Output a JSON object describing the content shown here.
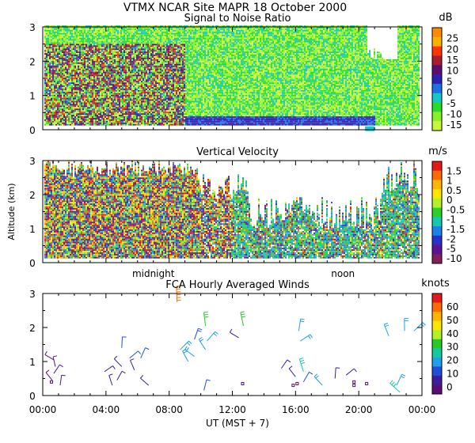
{
  "header": {
    "title": "VTMX   NCAR Site   MAPR 18 October 2000"
  },
  "chart_data": [
    {
      "type": "heatmap",
      "title": "Signal to Noise Ratio",
      "ylabel": "",
      "ylim": [
        0,
        3
      ],
      "yticks": [
        "0",
        "1",
        "2",
        "3"
      ],
      "colorbar": {
        "unit": "dB",
        "labels": [
          "25",
          "20",
          "15",
          "10",
          "5",
          "0",
          "-5",
          "-10",
          "-15"
        ],
        "colors": [
          "#ff8c00",
          "#ffb000",
          "#ff3300",
          "#aa1a33",
          "#5a0f70",
          "#3020b0",
          "#1e6fe6",
          "#14c8c8",
          "#28dc28",
          "#8cf028",
          "#c8f53c"
        ]
      },
      "notes": "Strong echo (15-25 dB) below 2 km from 00:00 to ~08:00 UT; weaker -15 to -5 dB elsewhere; lowest gate data missing."
    },
    {
      "type": "heatmap",
      "title": "Vertical Velocity",
      "ylabel": "Altitude (km)",
      "ylim": [
        0,
        3
      ],
      "yticks": [
        "0",
        "1",
        "2",
        "3"
      ],
      "xaxis_labels": [
        "midnight",
        "noon"
      ],
      "colorbar": {
        "unit": "m/s",
        "labels": [
          "1.5",
          "1",
          "0.5",
          "0",
          "-0.5",
          "-1",
          "-1.5",
          "-2",
          "-5",
          "-10"
        ],
        "colors": [
          "#e61919",
          "#ff6a00",
          "#ffb400",
          "#ffe600",
          "#b4f028",
          "#28d228",
          "#14c8b4",
          "#1e82e6",
          "#2832c8",
          "#5a1496",
          "#821e5a"
        ]
      },
      "notes": "Mixed up/down motions up to 3 km before ~10:00 UT, thinning to below ~1.5 km in afternoon."
    },
    {
      "type": "scatter",
      "title": "FCA Hourly Averaged Winds",
      "ylabel": "",
      "ylim": [
        0,
        3
      ],
      "xlim": [
        0,
        24
      ],
      "xlabel": "UT  (MST + 7)",
      "yticks": [
        "0",
        "1",
        "2",
        "3"
      ],
      "xticks": [
        "00:00",
        "04:00",
        "08:00",
        "12:00",
        "16:00",
        "20:00",
        "00:00"
      ],
      "colorbar": {
        "unit": "knots",
        "labels": [
          "60",
          "50",
          "40",
          "30",
          "20",
          "10",
          "0"
        ],
        "colors": [
          "#e61919",
          "#ff6a00",
          "#ffb400",
          "#ffe600",
          "#b4f028",
          "#28c828",
          "#14c8a0",
          "#1ea0e6",
          "#1e50dc",
          "#3c1e9b",
          "#5a0f78"
        ]
      },
      "series": [
        {
          "name": "wind barbs",
          "points": [
            {
              "x": 0.7,
              "y": 1.05,
              "speed": 5
            },
            {
              "x": 0.8,
              "y": 0.85,
              "speed": 5
            },
            {
              "x": 0.7,
              "y": 0.65,
              "speed": 8
            },
            {
              "x": 0.6,
              "y": 0.45,
              "speed": 3
            },
            {
              "x": 1.1,
              "y": 0.3,
              "speed": 6
            },
            {
              "x": 3.9,
              "y": 0.7,
              "speed": 6
            },
            {
              "x": 4.4,
              "y": 0.3,
              "speed": 8
            },
            {
              "x": 4.7,
              "y": 0.45,
              "speed": 6
            },
            {
              "x": 5.0,
              "y": 0.85,
              "speed": 10
            },
            {
              "x": 5.0,
              "y": 1.4,
              "speed": 12
            },
            {
              "x": 5.5,
              "y": 1.1,
              "speed": 12
            },
            {
              "x": 5.8,
              "y": 0.75,
              "speed": 8
            },
            {
              "x": 6.2,
              "y": 1.1,
              "speed": 14
            },
            {
              "x": 6.7,
              "y": 0.3,
              "speed": 10
            },
            {
              "x": 8.5,
              "y": 2.75,
              "speed": 55
            },
            {
              "x": 8.7,
              "y": 1.35,
              "speed": 20
            },
            {
              "x": 9.2,
              "y": 1.0,
              "speed": 18
            },
            {
              "x": 9.6,
              "y": 1.65,
              "speed": 16
            },
            {
              "x": 9.6,
              "y": 1.15,
              "speed": 18
            },
            {
              "x": 10.3,
              "y": 2.05,
              "speed": 30
            },
            {
              "x": 10.4,
              "y": 1.6,
              "speed": 22
            },
            {
              "x": 10.3,
              "y": 1.35,
              "speed": 20
            },
            {
              "x": 10.2,
              "y": 0.15,
              "speed": 12
            },
            {
              "x": 12.4,
              "y": 1.7,
              "speed": 6
            },
            {
              "x": 12.7,
              "y": 2.05,
              "speed": 32
            },
            {
              "x": 15.1,
              "y": 0.8,
              "speed": 6
            },
            {
              "x": 16.0,
              "y": 0.55,
              "speed": 8
            },
            {
              "x": 16.2,
              "y": 1.9,
              "speed": 20
            },
            {
              "x": 16.3,
              "y": 1.6,
              "speed": 18
            },
            {
              "x": 16.5,
              "y": 0.7,
              "speed": 28
            },
            {
              "x": 16.5,
              "y": 0.4,
              "speed": 14
            },
            {
              "x": 17.7,
              "y": 0.3,
              "speed": 18
            },
            {
              "x": 18.5,
              "y": 0.5,
              "speed": 10
            },
            {
              "x": 19.2,
              "y": 0.6,
              "speed": 6
            },
            {
              "x": 21.9,
              "y": 1.75,
              "speed": 22
            },
            {
              "x": 22.4,
              "y": 0.3,
              "speed": 20
            },
            {
              "x": 22.6,
              "y": 0.1,
              "speed": 28
            },
            {
              "x": 22.9,
              "y": 1.9,
              "speed": 22
            },
            {
              "x": 23.5,
              "y": 1.9,
              "speed": 20
            }
          ]
        },
        {
          "name": "calm markers",
          "points": [
            {
              "x": 0.55,
              "y": 0.4
            },
            {
              "x": 12.65,
              "y": 0.35
            },
            {
              "x": 15.85,
              "y": 0.3
            },
            {
              "x": 16.1,
              "y": 0.35
            },
            {
              "x": 19.7,
              "y": 0.4
            },
            {
              "x": 19.7,
              "y": 0.3
            },
            {
              "x": 20.5,
              "y": 0.35
            }
          ]
        }
      ]
    }
  ]
}
